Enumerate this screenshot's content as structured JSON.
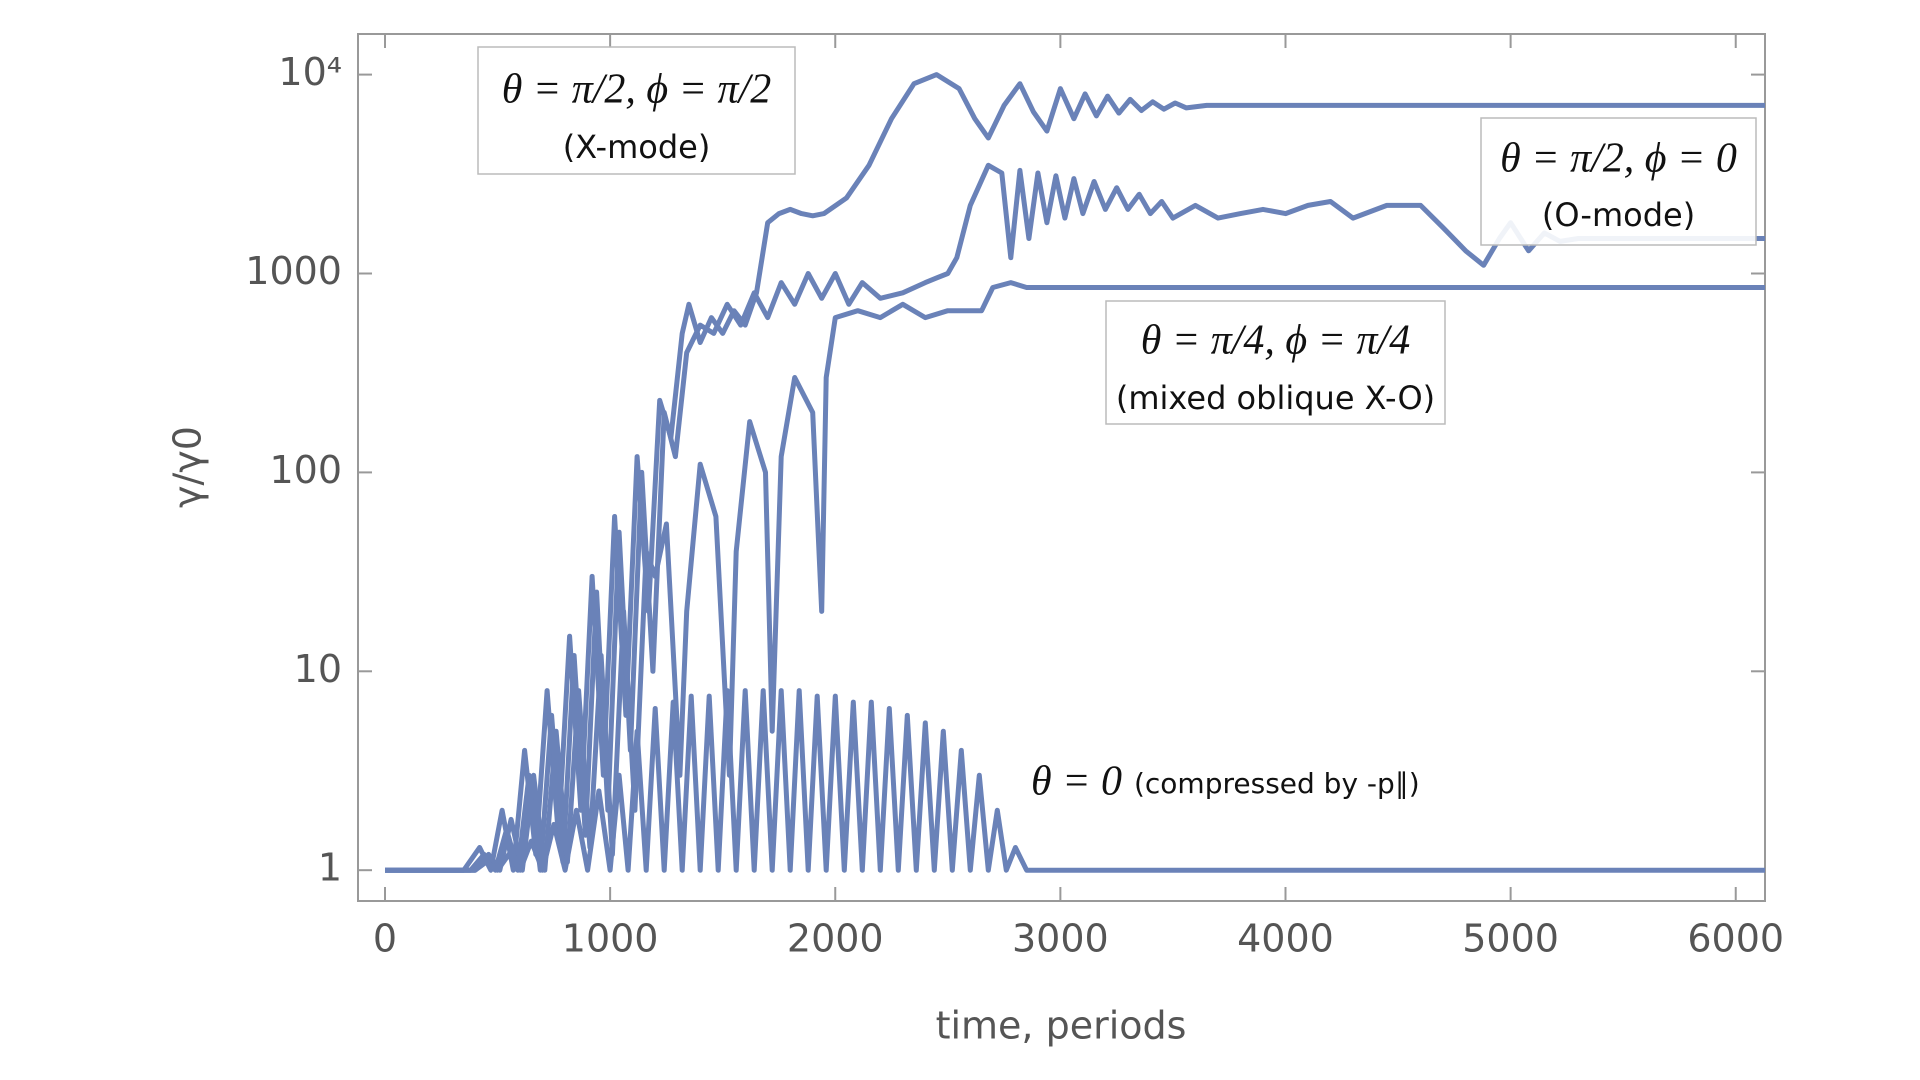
{
  "chart_data": {
    "type": "line",
    "log_y": true,
    "xlabel": "time, periods",
    "ylabel": "γ/γ0",
    "xlim": [
      -120,
      6130
    ],
    "ylim": [
      0.7,
      16000
    ],
    "xticks": [
      0,
      1000,
      2000,
      3000,
      4000,
      5000,
      6000
    ],
    "yticks": [
      1,
      10,
      100,
      1000,
      {
        "value": 10000,
        "label": "10⁴"
      }
    ],
    "annotations": [
      {
        "lines": [
          "θ = π/2, ϕ = π/2",
          "(X-mode)"
        ]
      },
      {
        "lines": [
          "θ = π/2, ϕ = 0",
          "(O-mode)"
        ]
      },
      {
        "lines": [
          "θ = π/4, ϕ = π/4",
          "(mixed oblique X-O)"
        ]
      },
      {
        "lines": [
          "θ = 0",
          "(compressed by -p∥)"
        ]
      }
    ],
    "series": [
      {
        "color": "#6a82b8",
        "x": [
          0,
          350,
          420,
          470,
          520,
          570,
          620,
          670,
          720,
          770,
          820,
          870,
          920,
          970,
          1020,
          1070,
          1120,
          1170,
          1220,
          1270,
          1320,
          1350,
          1400,
          1450,
          1500,
          1550,
          1600,
          1650,
          1700,
          1750,
          1800,
          1850,
          1900,
          1950,
          2050,
          2150,
          2250,
          2350,
          2450,
          2550,
          2620,
          2680,
          2750,
          2820,
          2880,
          2940,
          3000,
          3060,
          3110,
          3160,
          3210,
          3260,
          3310,
          3360,
          3410,
          3460,
          3510,
          3560,
          3650,
          3800,
          4000,
          6130
        ],
        "values": [
          1,
          1,
          1.3,
          1,
          2,
          1,
          4,
          1.2,
          8,
          1.5,
          15,
          2,
          30,
          3,
          60,
          6,
          120,
          20,
          230,
          150,
          500,
          700,
          450,
          600,
          500,
          650,
          550,
          800,
          1800,
          2000,
          2100,
          2000,
          1950,
          2000,
          2400,
          3500,
          6000,
          9000,
          10000,
          8500,
          6000,
          4800,
          7000,
          9000,
          6500,
          5200,
          8500,
          6000,
          8000,
          6200,
          7800,
          6400,
          7500,
          6600,
          7300,
          6700,
          7200,
          6800,
          7000,
          7000,
          7000,
          7000
        ]
      },
      {
        "color": "#6a82b8",
        "x": [
          0,
          380,
          440,
          490,
          540,
          590,
          640,
          690,
          740,
          790,
          840,
          890,
          940,
          990,
          1040,
          1090,
          1140,
          1190,
          1240,
          1290,
          1340,
          1400,
          1460,
          1520,
          1580,
          1640,
          1700,
          1760,
          1820,
          1880,
          1940,
          2000,
          2060,
          2120,
          2200,
          2300,
          2400,
          2450,
          2500,
          2540,
          2600,
          2680,
          2740,
          2780,
          2820,
          2860,
          2900,
          2940,
          2980,
          3020,
          3060,
          3100,
          3150,
          3200,
          3250,
          3300,
          3350,
          3400,
          3450,
          3500,
          3600,
          3700,
          3800,
          3900,
          4000,
          4100,
          4200,
          4300,
          4450,
          4600,
          4700,
          4800,
          4880,
          4950,
          5000,
          5080,
          5150,
          5220,
          5300,
          6130
        ],
        "values": [
          1,
          1,
          1.2,
          1,
          1.6,
          1,
          3,
          1,
          6,
          1.1,
          12,
          1.5,
          25,
          2,
          50,
          4,
          100,
          10,
          200,
          120,
          400,
          550,
          500,
          700,
          550,
          800,
          600,
          900,
          700,
          1000,
          750,
          1000,
          700,
          900,
          750,
          800,
          900,
          950,
          1000,
          1200,
          2200,
          3500,
          3200,
          1200,
          3300,
          1500,
          3200,
          1800,
          3100,
          1900,
          3000,
          2000,
          2900,
          2100,
          2700,
          2100,
          2500,
          2000,
          2300,
          1900,
          2200,
          1900,
          2000,
          2100,
          2000,
          2200,
          2300,
          1900,
          2200,
          2200,
          1700,
          1300,
          1100,
          1500,
          1800,
          1300,
          1600,
          1450,
          1500,
          1500
        ]
      },
      {
        "color": "#6a82b8",
        "x": [
          0,
          400,
          460,
          510,
          560,
          610,
          660,
          710,
          760,
          810,
          860,
          910,
          960,
          1010,
          1060,
          1110,
          1160,
          1200,
          1250,
          1310,
          1340,
          1400,
          1470,
          1530,
          1560,
          1620,
          1690,
          1720,
          1760,
          1820,
          1900,
          1940,
          1960,
          2000,
          2100,
          2200,
          2300,
          2400,
          2500,
          2600,
          2650,
          2700,
          2780,
          2850,
          6130
        ],
        "values": [
          1,
          1,
          1.2,
          1,
          1.8,
          1,
          3,
          1,
          5,
          1.1,
          8,
          1.3,
          12,
          1.2,
          20,
          2,
          40,
          30,
          55,
          3,
          20,
          110,
          60,
          3,
          40,
          180,
          100,
          5,
          120,
          300,
          200,
          20,
          300,
          600,
          650,
          600,
          700,
          600,
          650,
          650,
          650,
          850,
          900,
          850,
          850
        ]
      },
      {
        "color": "#6a82b8",
        "x": [
          0,
          400,
          450,
          500,
          550,
          600,
          650,
          700,
          750,
          800,
          850,
          900,
          950,
          1000,
          1040,
          1080,
          1120,
          1160,
          1200,
          1240,
          1280,
          1320,
          1360,
          1400,
          1440,
          1480,
          1520,
          1560,
          1600,
          1640,
          1680,
          1720,
          1760,
          1800,
          1840,
          1880,
          1920,
          1960,
          2000,
          2040,
          2080,
          2120,
          2160,
          2200,
          2240,
          2280,
          2320,
          2360,
          2400,
          2440,
          2480,
          2520,
          2560,
          2600,
          2640,
          2680,
          2720,
          2760,
          2800,
          2850,
          6130
        ],
        "values": [
          1,
          1,
          1.1,
          1,
          1.2,
          1,
          1.4,
          1,
          1.7,
          1,
          2,
          1,
          2.5,
          1,
          3,
          1,
          5,
          1,
          6.5,
          1,
          7,
          1,
          7.5,
          1,
          7.5,
          1,
          8,
          1,
          8,
          1,
          8,
          1,
          8,
          1,
          8,
          1,
          7.5,
          1,
          7.5,
          1,
          7,
          1,
          7,
          1,
          6.5,
          1,
          6,
          1,
          5.5,
          1,
          5,
          1,
          4,
          1,
          3,
          1,
          2,
          1,
          1.3,
          1,
          1
        ]
      }
    ]
  }
}
